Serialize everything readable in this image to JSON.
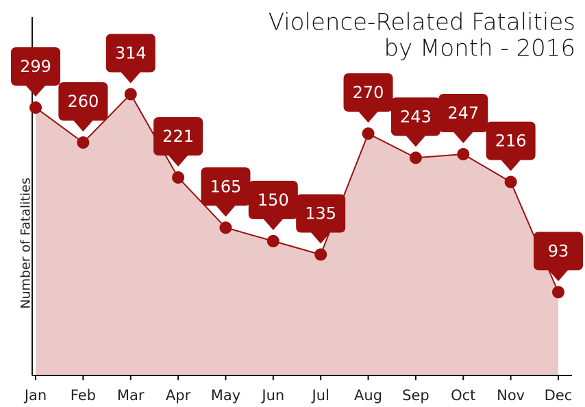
{
  "chart_data": {
    "type": "area",
    "title": [
      "Violence-Related Fatalities",
      "by Month - 2016"
    ],
    "y_label": "Number of Fatalities",
    "categories": [
      "Jan",
      "Feb",
      "Mar",
      "Apr",
      "May",
      "Jun",
      "Jul",
      "Aug",
      "Sep",
      "Oct",
      "Nov",
      "Dec"
    ],
    "values": [
      299,
      260,
      314,
      221,
      165,
      150,
      135,
      270,
      243,
      247,
      216,
      93
    ],
    "color": "#9b0f0f",
    "fill_color": "#ecc9c9",
    "ylim": [
      0,
      400
    ]
  }
}
